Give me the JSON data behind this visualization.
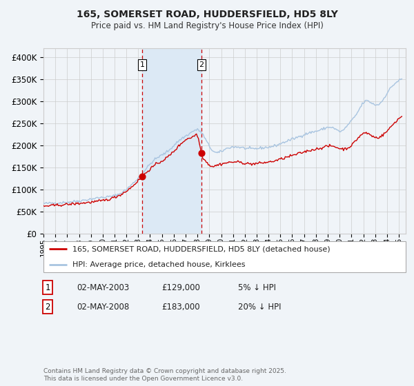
{
  "title": "165, SOMERSET ROAD, HUDDERSFIELD, HD5 8LY",
  "subtitle": "Price paid vs. HM Land Registry's House Price Index (HPI)",
  "legend_line1": "165, SOMERSET ROAD, HUDDERSFIELD, HD5 8LY (detached house)",
  "legend_line2": "HPI: Average price, detached house, Kirklees",
  "purchase1_label": "1",
  "purchase1_price": 129000,
  "purchase1_text": "02-MAY-2003",
  "purchase1_pct": "5% ↓ HPI",
  "purchase2_label": "2",
  "purchase2_price": 183000,
  "purchase2_text": "02-MAY-2008",
  "purchase2_pct": "20% ↓ HPI",
  "hpi_color": "#a8c4e0",
  "property_color": "#cc0000",
  "marker_color": "#cc0000",
  "shading_color": "#dce9f5",
  "dashed_line_color": "#cc0000",
  "background_color": "#f0f4f8",
  "plot_bg_color": "#f0f4f8",
  "grid_color": "#cccccc",
  "footer_text": "Contains HM Land Registry data © Crown copyright and database right 2025.\nThis data is licensed under the Open Government Licence v3.0.",
  "ylim": [
    0,
    420000
  ],
  "yticks": [
    0,
    50000,
    100000,
    150000,
    200000,
    250000,
    300000,
    350000,
    400000
  ],
  "ytick_labels": [
    "£0",
    "£50K",
    "£100K",
    "£150K",
    "£200K",
    "£250K",
    "£300K",
    "£350K",
    "£400K"
  ]
}
